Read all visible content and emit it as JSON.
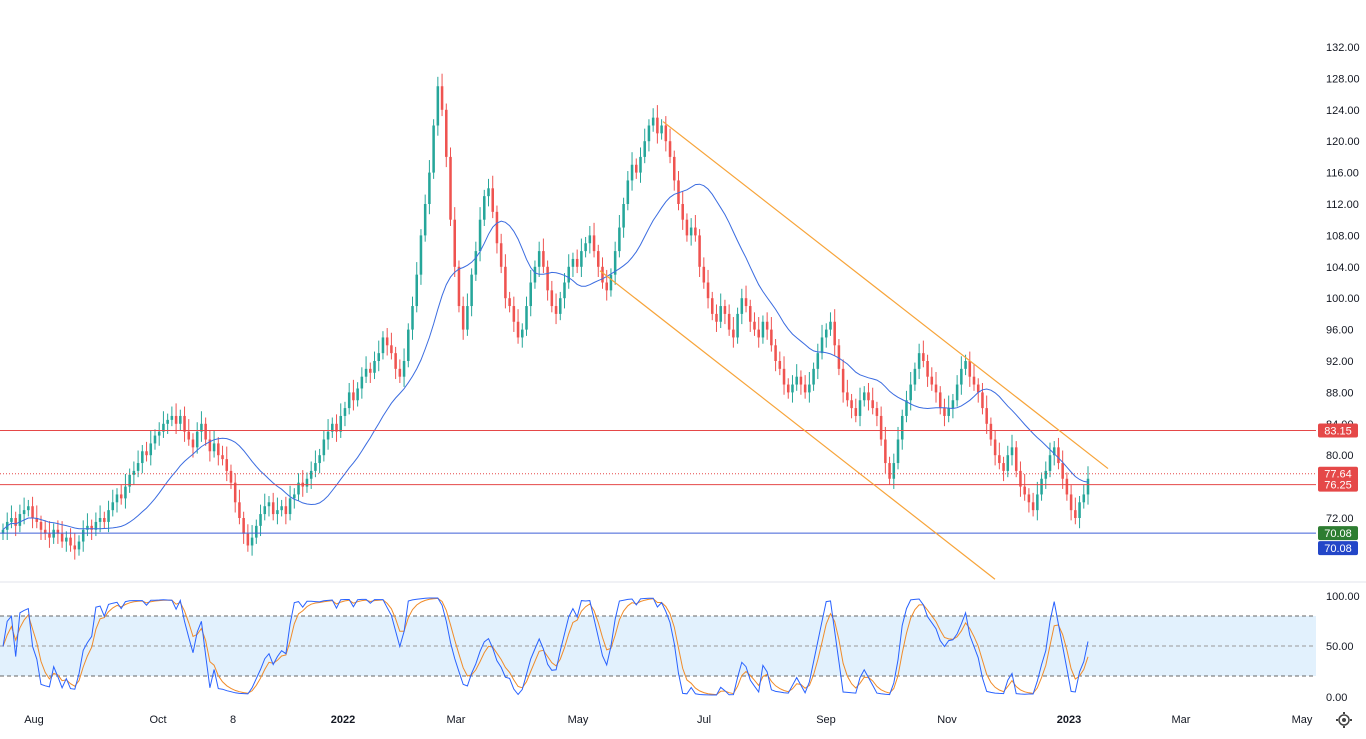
{
  "chart_data": {
    "type": "candlestick",
    "price_axis": {
      "min": 68,
      "max": 133,
      "ticks": [
        "132.00",
        "128.00",
        "124.00",
        "120.00",
        "116.00",
        "112.00",
        "108.00",
        "104.00",
        "100.00",
        "96.00",
        "92.00",
        "88.00",
        "84.00",
        "80.00",
        "76.00",
        "72.00"
      ]
    },
    "time_axis": {
      "labels": [
        "Aug",
        "Oct",
        "8",
        "2022",
        "Mar",
        "May",
        "Jul",
        "Sep",
        "Nov",
        "2023",
        "Mar",
        "May"
      ]
    },
    "candles_close": [
      70.5,
      71.5,
      72,
      71,
      72.5,
      73,
      73.5,
      72,
      71.5,
      70.5,
      70,
      69.5,
      70.5,
      70,
      69,
      69.5,
      68.5,
      68,
      69,
      70.5,
      71,
      70.5,
      71.5,
      72,
      71.5,
      73,
      74,
      75,
      74.5,
      76,
      77.5,
      78,
      79,
      80.5,
      80,
      81.5,
      82.5,
      83,
      84,
      84.5,
      85,
      84,
      85,
      83,
      82,
      81,
      83,
      84,
      82,
      80.5,
      81.5,
      80,
      79.5,
      78,
      76.5,
      74,
      72,
      70,
      68.5,
      69.5,
      71,
      72.5,
      73.5,
      74,
      72.5,
      73,
      73.5,
      72.5,
      74.5,
      75,
      76.5,
      76,
      77,
      78,
      79,
      80,
      82,
      83,
      84,
      83,
      85,
      86,
      88,
      87,
      88.5,
      90,
      91,
      90.5,
      92,
      93,
      95,
      94,
      93,
      91,
      90,
      92,
      96,
      99,
      103,
      108,
      112,
      116,
      122,
      127,
      124,
      118,
      110,
      104,
      99,
      96,
      99,
      103,
      106,
      110,
      113,
      114,
      111,
      107,
      104,
      100,
      99,
      97,
      95,
      96,
      99,
      102,
      104,
      106,
      104,
      101,
      99,
      98,
      100,
      102,
      104,
      105,
      104,
      106,
      107,
      108,
      106,
      104,
      102,
      101,
      103,
      106,
      109,
      112,
      115,
      117,
      116,
      118,
      120,
      122,
      123,
      121,
      122,
      120,
      118,
      115,
      112,
      110,
      108,
      109,
      108,
      104,
      102,
      100,
      98,
      97,
      99,
      98,
      96,
      95,
      98,
      100,
      99,
      97,
      96,
      95,
      97,
      96,
      94,
      92,
      91,
      89,
      88,
      89,
      90,
      89,
      88,
      89,
      91,
      93,
      95,
      96,
      97,
      94,
      91,
      88,
      87,
      86,
      85,
      87,
      88,
      87,
      86,
      85,
      82,
      79,
      77,
      79,
      82,
      85,
      87,
      89,
      91,
      93,
      92,
      90,
      89,
      88,
      86,
      85,
      86,
      87,
      89,
      91,
      92,
      90,
      89,
      88,
      86,
      84,
      82,
      80,
      79,
      78,
      80,
      81,
      78,
      76,
      75,
      74,
      73,
      75,
      77,
      78,
      80,
      81,
      79,
      77,
      75,
      73,
      72,
      74,
      75,
      77
    ]
  }
}
